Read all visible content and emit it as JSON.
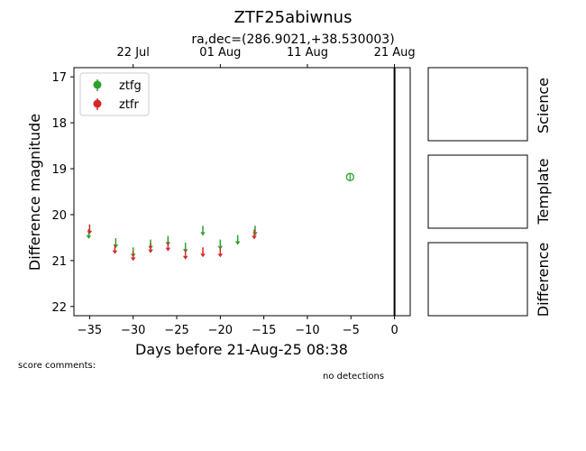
{
  "chart_data": {
    "type": "scatter",
    "title": "ZTF25abiwnus",
    "subtitle": "ra,dec=(286.9021,+38.530003)",
    "xlabel": "Days before 21-Aug-25 08:38",
    "ylabel": "Difference magnitude",
    "xlim": [
      -36.8,
      1.8
    ],
    "ylim": [
      22.2,
      16.8
    ],
    "y_inverted": true,
    "x_ticks": [
      -35,
      -30,
      -25,
      -20,
      -15,
      -10,
      -5,
      0
    ],
    "x_tick_labels": [
      "−35",
      "−30",
      "−25",
      "−20",
      "−15",
      "−10",
      "−5",
      "0"
    ],
    "y_ticks": [
      17,
      18,
      19,
      20,
      21,
      22
    ],
    "top_axis_ticks": [
      {
        "x": -30,
        "label": "22 Jul"
      },
      {
        "x": -20,
        "label": "01 Aug"
      },
      {
        "x": -10,
        "label": "11 Aug"
      },
      {
        "x": 0,
        "label": "21 Aug"
      }
    ],
    "vline_x": 0,
    "legend_position": "upper-left",
    "series": [
      {
        "name": "ztfg",
        "color": "#2ca02c",
        "upper_limits": [
          {
            "x": -35.1,
            "y": 20.45
          },
          {
            "x": -32.0,
            "y": 20.65
          },
          {
            "x": -30.0,
            "y": 20.85
          },
          {
            "x": -28.0,
            "y": 20.68
          },
          {
            "x": -26.0,
            "y": 20.6
          },
          {
            "x": -24.0,
            "y": 20.75
          },
          {
            "x": -22.0,
            "y": 20.38
          },
          {
            "x": -20.0,
            "y": 20.68
          },
          {
            "x": -18.0,
            "y": 20.58
          },
          {
            "x": -16.0,
            "y": 20.38
          }
        ],
        "detections": [
          {
            "x": -5.1,
            "y": 19.18,
            "err": 0.07
          }
        ]
      },
      {
        "name": "ztfr",
        "color": "#d62728",
        "upper_limits": [
          {
            "x": -35.0,
            "y": 20.35
          },
          {
            "x": -32.1,
            "y": 20.78
          },
          {
            "x": -30.0,
            "y": 20.93
          },
          {
            "x": -28.0,
            "y": 20.76
          },
          {
            "x": -26.0,
            "y": 20.72
          },
          {
            "x": -24.0,
            "y": 20.9
          },
          {
            "x": -22.0,
            "y": 20.85
          },
          {
            "x": -20.0,
            "y": 20.85
          },
          {
            "x": -16.1,
            "y": 20.46
          }
        ],
        "detections": []
      }
    ]
  },
  "side_panels": [
    {
      "label": "Science"
    },
    {
      "label": "Template"
    },
    {
      "label": "Difference"
    }
  ],
  "score_comments_label": "score comments:",
  "detections_note": "no detections"
}
